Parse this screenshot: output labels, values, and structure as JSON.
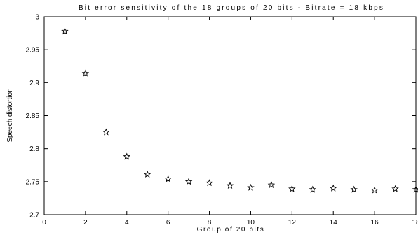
{
  "chart_data": {
    "type": "scatter",
    "title": "Bit error sensitivity of the 18 groups of 20 bits - Bitrate = 18 kbps",
    "xlabel": "Group of 20 bits",
    "ylabel": "Speech distortion",
    "xlim": [
      0,
      18
    ],
    "ylim": [
      2.7,
      3
    ],
    "xticks": [
      0,
      2,
      4,
      6,
      8,
      10,
      12,
      14,
      16,
      18
    ],
    "xtick_labels": [
      "0",
      "2",
      "4",
      "6",
      "8",
      "10",
      "12",
      "14",
      "16",
      "18"
    ],
    "yticks": [
      2.7,
      2.75,
      2.8,
      2.85,
      2.9,
      2.95,
      3
    ],
    "ytick_labels": [
      "2.7",
      "2.75",
      "2.8",
      "2.85",
      "2.9",
      "2.95",
      "3"
    ],
    "marker": "star",
    "grid": false,
    "series": [
      {
        "x": [
          1,
          2,
          3,
          4,
          5,
          6,
          7,
          8,
          9,
          10,
          11,
          12,
          13,
          14,
          15,
          16,
          17,
          18
        ],
        "y": [
          2.978,
          2.914,
          2.825,
          2.788,
          2.761,
          2.754,
          2.75,
          2.748,
          2.744,
          2.741,
          2.745,
          2.739,
          2.738,
          2.74,
          2.738,
          2.737,
          2.739,
          2.738
        ]
      }
    ]
  }
}
